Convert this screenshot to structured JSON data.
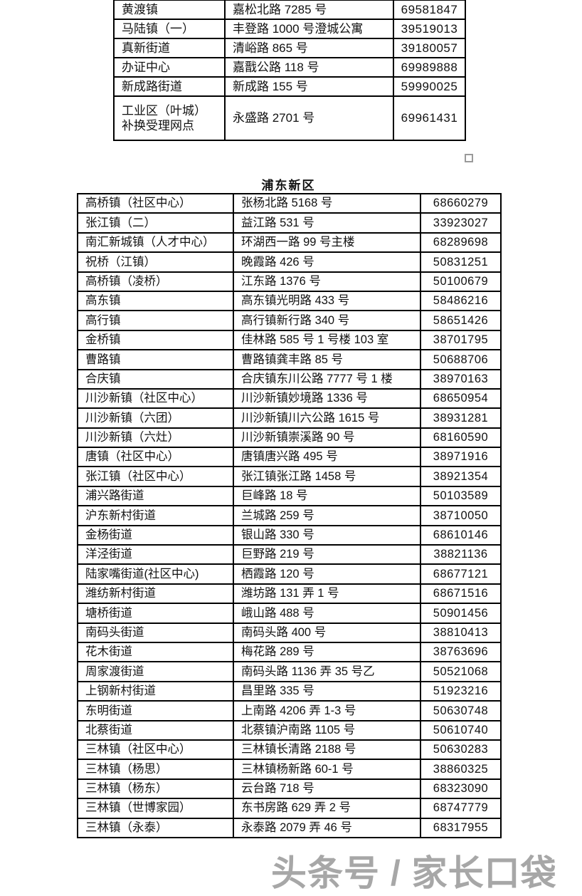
{
  "colors": {
    "table_border": "#000000",
    "watermark_gray": "#949494",
    "placeholder_gray": "#9a9a9a"
  },
  "table1": {
    "rows": [
      {
        "name": "黄渡镇",
        "address": "嘉松北路 7285 号",
        "phone": "69581847"
      },
      {
        "name": "马陆镇（一）",
        "address": "丰登路 1000 号澄城公寓",
        "phone": "39519013"
      },
      {
        "name": "真新街道",
        "address": "清峪路 865 号",
        "phone": "39180057"
      },
      {
        "name": "办证中心",
        "address": "嘉戬公路 118 号",
        "phone": "69989888"
      },
      {
        "name": "新成路街道",
        "address": "新成路 155 号",
        "phone": "59990025"
      },
      {
        "name": "工业区（叶城） 补换受理网点",
        "address": "永盛路 2701 号",
        "phone": "69961431"
      }
    ]
  },
  "pudong": {
    "title": "浦东新区",
    "rows": [
      {
        "name": "高桥镇（社区中心）",
        "address": "张杨北路 5168 号",
        "phone": "68660279"
      },
      {
        "name": "张江镇（二）",
        "address": "益江路 531 号",
        "phone": "33923027"
      },
      {
        "name": "南汇新城镇（人才中心）",
        "address": "环湖西一路 99 号主楼",
        "phone": "68289698"
      },
      {
        "name": "祝桥（江镇）",
        "address": "晚霞路 426 号",
        "phone": "50831251"
      },
      {
        "name": "高桥镇（凌桥）",
        "address": "江东路 1376 号",
        "phone": "50100679"
      },
      {
        "name": "高东镇",
        "address": "高东镇光明路 433 号",
        "phone": "58486216"
      },
      {
        "name": "高行镇",
        "address": "高行镇新行路 340 号",
        "phone": "58651426"
      },
      {
        "name": "金桥镇",
        "address": "佳林路 585 号 1 号楼 103 室",
        "phone": "38701795"
      },
      {
        "name": "曹路镇",
        "address": "曹路镇龚丰路 85 号",
        "phone": "50688706"
      },
      {
        "name": "合庆镇",
        "address": "合庆镇东川公路 7777 号 1 楼",
        "phone": "38970163"
      },
      {
        "name": "川沙新镇（社区中心）",
        "address": "川沙新镇妙境路 1336 号",
        "phone": "68650954"
      },
      {
        "name": "川沙新镇（六团）",
        "address": "川沙新镇川六公路 1615 号",
        "phone": "38931281"
      },
      {
        "name": "川沙新镇（六灶）",
        "address": "川沙新镇崇溪路 90 号",
        "phone": "68160590"
      },
      {
        "name": "唐镇（社区中心）",
        "address": "唐镇唐兴路 495 号",
        "phone": "38971916"
      },
      {
        "name": "张江镇（社区中心）",
        "address": "张江镇张江路 1458 号",
        "phone": "38921354"
      },
      {
        "name": "浦兴路街道",
        "address": "巨峰路 18 号",
        "phone": "50103589"
      },
      {
        "name": "沪东新村街道",
        "address": "兰城路 259 号",
        "phone": "38710050"
      },
      {
        "name": "金杨街道",
        "address": "银山路 330 号",
        "phone": "68610146"
      },
      {
        "name": "洋泾街道",
        "address": "巨野路 219 号",
        "phone": "38821136"
      },
      {
        "name": "陆家嘴街道(社区中心)",
        "address": "栖霞路 120 号",
        "phone": "68677121"
      },
      {
        "name": "潍纺新村街道",
        "address": "潍坊路 131 弄 1 号",
        "phone": "68671516"
      },
      {
        "name": "塘桥街道",
        "address": "峨山路 488 号",
        "phone": "50901456"
      },
      {
        "name": "南码头街道",
        "address": "南码头路 400 号",
        "phone": "38810413"
      },
      {
        "name": "花木街道",
        "address": "梅花路 289 号",
        "phone": "38763696"
      },
      {
        "name": "周家渡街道",
        "address": "南码头路 1136 弄 35 号乙",
        "phone": "50521068"
      },
      {
        "name": "上钢新村街道",
        "address": "昌里路 335 号",
        "phone": "51923216"
      },
      {
        "name": "东明街道",
        "address": "上南路 4206 弄 1-3 号",
        "phone": "50630748"
      },
      {
        "name": "北蔡街道",
        "address": "北蔡镇沪南路 1105 号",
        "phone": "50610740"
      },
      {
        "name": "三林镇（社区中心）",
        "address": "三林镇长清路 2188 号",
        "phone": "50630283"
      },
      {
        "name": "三林镇（杨思）",
        "address": "三林镇杨新路 60-1 号",
        "phone": "38860325"
      },
      {
        "name": "三林镇（杨东）",
        "address": "云台路 718 号",
        "phone": "68323090"
      },
      {
        "name": "三林镇（世博家园）",
        "address": "东书房路 629 弄 2 号",
        "phone": "68747779"
      },
      {
        "name": "三林镇（永泰）",
        "address": "永泰路 2079 弄 46 号",
        "phone": "68317955"
      }
    ]
  },
  "watermark": {
    "text": "头条号 / 家长口袋"
  },
  "icons": {
    "placeholder_square": "empty-square-icon"
  }
}
